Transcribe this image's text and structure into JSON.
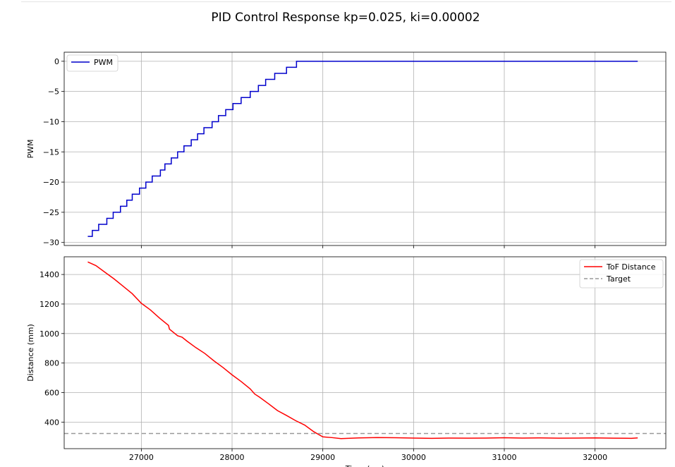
{
  "figure": {
    "title": "PID Control Response kp=0.025, ki=0.00002"
  },
  "chart_data": [
    {
      "type": "line",
      "ylabel": "PWM",
      "xlim": [
        26150,
        32780
      ],
      "ylim": [
        -30.5,
        1.5
      ],
      "yticks": [
        0,
        -5,
        -10,
        -15,
        -20,
        -25,
        -30
      ],
      "xticks": [
        27000,
        28000,
        29000,
        30000,
        31000,
        32000
      ],
      "grid": true,
      "legend_position": "upper left",
      "series": [
        {
          "name": "PWM",
          "color": "#0000cc",
          "step": true,
          "points": [
            [
              26410,
              -29
            ],
            [
              26460,
              -28
            ],
            [
              26530,
              -27
            ],
            [
              26620,
              -26
            ],
            [
              26690,
              -25
            ],
            [
              26770,
              -24
            ],
            [
              26840,
              -23
            ],
            [
              26900,
              -22
            ],
            [
              26980,
              -21
            ],
            [
              27050,
              -20
            ],
            [
              27120,
              -19
            ],
            [
              27210,
              -18
            ],
            [
              27260,
              -17
            ],
            [
              27330,
              -16
            ],
            [
              27400,
              -15
            ],
            [
              27470,
              -14
            ],
            [
              27550,
              -13
            ],
            [
              27620,
              -12
            ],
            [
              27690,
              -11
            ],
            [
              27780,
              -10
            ],
            [
              27850,
              -9
            ],
            [
              27930,
              -8
            ],
            [
              28010,
              -7
            ],
            [
              28100,
              -6
            ],
            [
              28200,
              -5
            ],
            [
              28290,
              -4
            ],
            [
              28370,
              -3
            ],
            [
              28470,
              -2
            ],
            [
              28600,
              -1
            ],
            [
              28710,
              0
            ],
            [
              28890,
              0
            ],
            [
              32470,
              0
            ]
          ]
        }
      ]
    },
    {
      "type": "line",
      "xlabel": "Time (ms)",
      "ylabel": "Distance (mm)",
      "xlim": [
        26150,
        32780
      ],
      "ylim": [
        220,
        1520
      ],
      "yticks": [
        400,
        600,
        800,
        1000,
        1200,
        1400
      ],
      "xticks": [
        27000,
        28000,
        29000,
        30000,
        31000,
        32000
      ],
      "grid": true,
      "legend_position": "upper right",
      "series": [
        {
          "name": "ToF Distance",
          "color": "#ff0000",
          "points": [
            [
              26410,
              1485
            ],
            [
              26500,
              1460
            ],
            [
              26600,
              1415
            ],
            [
              26700,
              1370
            ],
            [
              26800,
              1320
            ],
            [
              26900,
              1270
            ],
            [
              27000,
              1205
            ],
            [
              27100,
              1160
            ],
            [
              27200,
              1105
            ],
            [
              27300,
              1055
            ],
            [
              27310,
              1030
            ],
            [
              27400,
              985
            ],
            [
              27450,
              975
            ],
            [
              27500,
              950
            ],
            [
              27600,
              905
            ],
            [
              27700,
              865
            ],
            [
              27800,
              815
            ],
            [
              27900,
              770
            ],
            [
              28000,
              720
            ],
            [
              28100,
              675
            ],
            [
              28200,
              625
            ],
            [
              28250,
              590
            ],
            [
              28300,
              570
            ],
            [
              28400,
              525
            ],
            [
              28500,
              478
            ],
            [
              28600,
              445
            ],
            [
              28700,
              410
            ],
            [
              28800,
              380
            ],
            [
              28900,
              335
            ],
            [
              29000,
              300
            ],
            [
              29100,
              295
            ],
            [
              29200,
              288
            ],
            [
              29400,
              293
            ],
            [
              29600,
              295
            ],
            [
              29800,
              294
            ],
            [
              30000,
              292
            ],
            [
              30200,
              290
            ],
            [
              30400,
              292
            ],
            [
              30600,
              291
            ],
            [
              30800,
              292
            ],
            [
              31000,
              294
            ],
            [
              31200,
              292
            ],
            [
              31400,
              293
            ],
            [
              31600,
              291
            ],
            [
              31800,
              292
            ],
            [
              32000,
              293
            ],
            [
              32200,
              291
            ],
            [
              32400,
              290
            ],
            [
              32470,
              293
            ]
          ]
        },
        {
          "name": "Target",
          "color": "#999999",
          "dashed": true,
          "points": [
            [
              26150,
              323
            ],
            [
              32780,
              323
            ]
          ]
        }
      ]
    }
  ]
}
